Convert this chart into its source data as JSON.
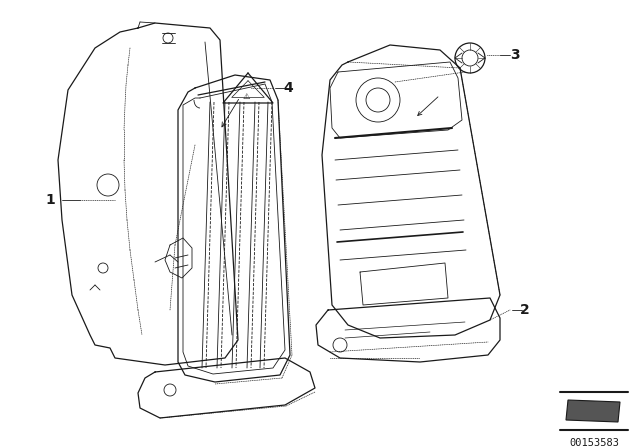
{
  "bg_color": "#ffffff",
  "line_color": "#1a1a1a",
  "fig_width": 6.4,
  "fig_height": 4.48,
  "dpi": 100,
  "catalog_id": "00153583"
}
